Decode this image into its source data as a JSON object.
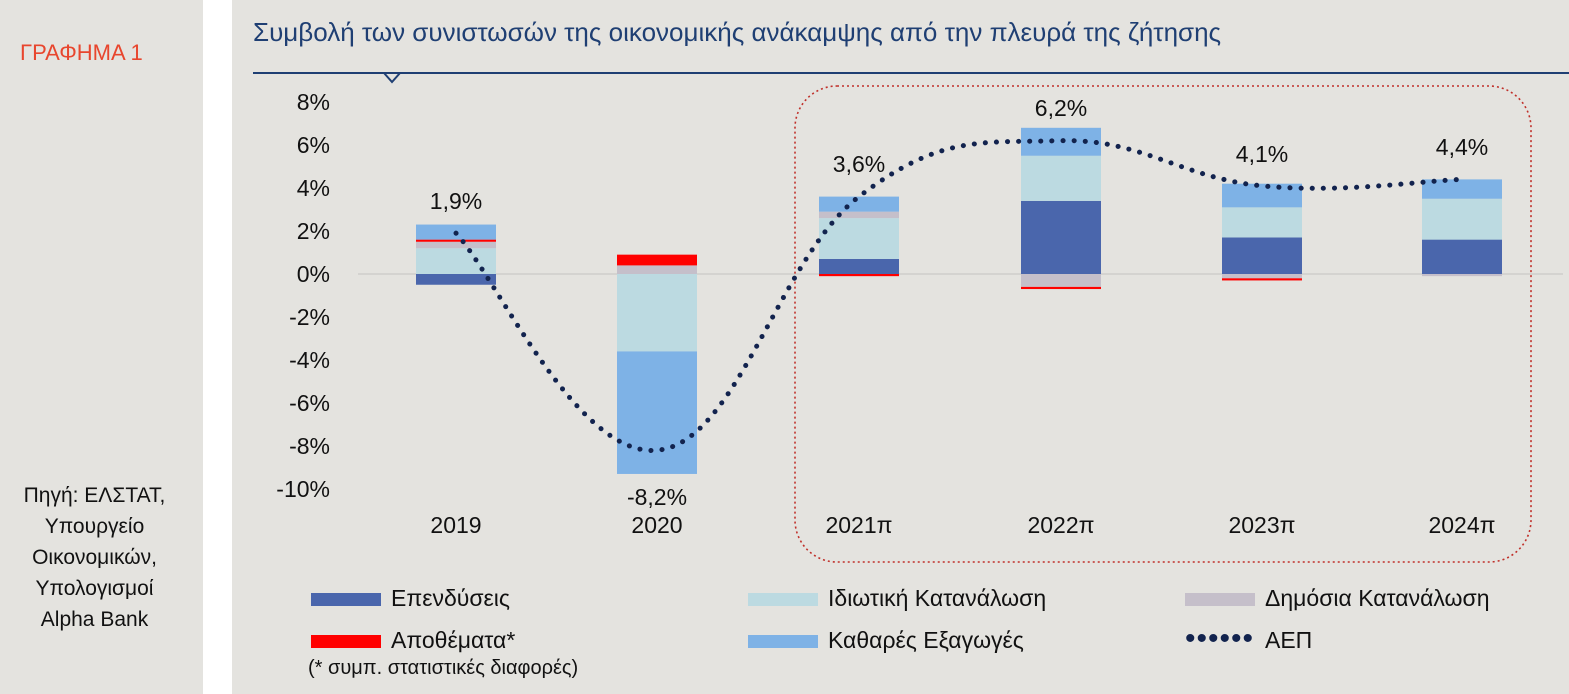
{
  "sidebar": {
    "figure_label": "ΓΡΑΦΗΜΑ 1",
    "source_note": "Πηγή: ΕΛΣΤΑΤ,\nΥπουργείο\nΟικονομικών,\nΥπολογισμοί\nAlpha Bank"
  },
  "colors": {
    "investment": "#4a66ac",
    "private_consumption": "#bcdae1",
    "public_consumption": "#c5bfca",
    "inventories": "#ff0000",
    "net_exports": "#7eb2e6",
    "gdp": "#12234e",
    "title": "#1f3f73",
    "highlight_border": "#c0302a"
  },
  "chart_data": {
    "type": "bar",
    "title": "Συμβολή των συνιστωσών της οικονομικής ανάκαμψης από την πλευρά της ζήτησης",
    "categories": [
      "2019",
      "2020",
      "2021π",
      "2022π",
      "2023π",
      "2024π"
    ],
    "ylim": [
      -10,
      8
    ],
    "y_ticks": [
      "8%",
      "6%",
      "4%",
      "2%",
      "0%",
      "-2%",
      "-4%",
      "-6%",
      "-8%",
      "-10%"
    ],
    "stacked": true,
    "series": [
      {
        "name": "Επενδύσεις",
        "values": [
          -0.5,
          0.0,
          0.7,
          3.4,
          1.7,
          1.6
        ]
      },
      {
        "name": "Ιδιωτική Κατανάλωση",
        "values": [
          1.2,
          -3.6,
          1.9,
          2.1,
          1.4,
          1.9
        ]
      },
      {
        "name": "Δημόσια Κατανάλωση",
        "values": [
          0.3,
          0.4,
          0.3,
          -0.6,
          -0.2,
          -0.1
        ]
      },
      {
        "name": "Αποθέματα*",
        "values": [
          0.1,
          0.5,
          -0.1,
          -0.1,
          -0.1,
          0.0
        ]
      },
      {
        "name": "Καθαρές Εξαγωγές",
        "values": [
          0.7,
          -5.7,
          0.7,
          1.3,
          1.1,
          0.9
        ]
      }
    ],
    "line": {
      "name": "ΑΕΠ",
      "values": [
        1.9,
        -8.2,
        3.6,
        6.2,
        4.1,
        4.4
      ]
    },
    "data_labels": [
      "1,9%",
      "-8,2%",
      "3,6%",
      "6,2%",
      "4,1%",
      "4,4%"
    ],
    "legend_footnote": "(* συμπ. στατιστικές διαφορές)"
  }
}
